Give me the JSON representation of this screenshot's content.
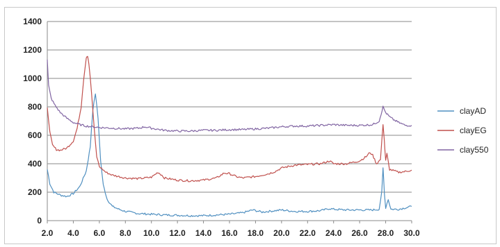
{
  "chart_data": {
    "type": "line",
    "title": "",
    "xlabel": "",
    "ylabel": "",
    "xlim": [
      2.0,
      30.0
    ],
    "ylim": [
      0,
      1400
    ],
    "x_ticks": [
      "2.0",
      "4.0",
      "6.0",
      "8.0",
      "10.0",
      "12.0",
      "14.0",
      "16.0",
      "18.0",
      "20.0",
      "22.0",
      "24.0",
      "26.0",
      "28.0",
      "30.0"
    ],
    "y_ticks": [
      "0",
      "200",
      "400",
      "600",
      "800",
      "1000",
      "1200",
      "1400"
    ],
    "grid": "horizontal",
    "legend_position": "right",
    "series": [
      {
        "name": "clayAD",
        "color": "#4f8fc0",
        "points": [
          [
            2.0,
            360
          ],
          [
            2.2,
            260
          ],
          [
            2.5,
            200
          ],
          [
            3.0,
            180
          ],
          [
            3.5,
            170
          ],
          [
            4.0,
            190
          ],
          [
            4.5,
            240
          ],
          [
            5.0,
            350
          ],
          [
            5.3,
            520
          ],
          [
            5.5,
            780
          ],
          [
            5.7,
            895
          ],
          [
            5.9,
            720
          ],
          [
            6.1,
            420
          ],
          [
            6.3,
            250
          ],
          [
            6.6,
            150
          ],
          [
            7.0,
            100
          ],
          [
            7.5,
            80
          ],
          [
            8.0,
            65
          ],
          [
            9.0,
            50
          ],
          [
            10.0,
            45
          ],
          [
            11.0,
            40
          ],
          [
            12.0,
            38
          ],
          [
            13.0,
            35
          ],
          [
            14.0,
            35
          ],
          [
            15.0,
            40
          ],
          [
            16.0,
            45
          ],
          [
            17.0,
            55
          ],
          [
            17.8,
            75
          ],
          [
            18.5,
            60
          ],
          [
            19.5,
            70
          ],
          [
            20.0,
            75
          ],
          [
            21.0,
            65
          ],
          [
            22.0,
            65
          ],
          [
            23.0,
            70
          ],
          [
            23.7,
            85
          ],
          [
            24.0,
            80
          ],
          [
            25.0,
            75
          ],
          [
            26.0,
            75
          ],
          [
            27.0,
            75
          ],
          [
            27.5,
            80
          ],
          [
            27.7,
            200
          ],
          [
            27.8,
            370
          ],
          [
            27.9,
            200
          ],
          [
            28.0,
            90
          ],
          [
            28.2,
            150
          ],
          [
            28.4,
            80
          ],
          [
            29.0,
            80
          ],
          [
            29.5,
            90
          ],
          [
            30.0,
            100
          ]
        ]
      },
      {
        "name": "clayEG",
        "color": "#c0504d",
        "points": [
          [
            2.0,
            800
          ],
          [
            2.2,
            620
          ],
          [
            2.4,
            530
          ],
          [
            2.7,
            500
          ],
          [
            3.0,
            495
          ],
          [
            3.5,
            510
          ],
          [
            4.0,
            560
          ],
          [
            4.3,
            650
          ],
          [
            4.6,
            800
          ],
          [
            4.8,
            1000
          ],
          [
            5.0,
            1150
          ],
          [
            5.1,
            1160
          ],
          [
            5.2,
            1100
          ],
          [
            5.4,
            900
          ],
          [
            5.6,
            650
          ],
          [
            5.8,
            450
          ],
          [
            6.0,
            380
          ],
          [
            6.5,
            340
          ],
          [
            7.0,
            320
          ],
          [
            8.0,
            300
          ],
          [
            9.0,
            295
          ],
          [
            10.0,
            305
          ],
          [
            10.5,
            340
          ],
          [
            10.8,
            320
          ],
          [
            11.0,
            300
          ],
          [
            12.0,
            285
          ],
          [
            13.0,
            280
          ],
          [
            14.0,
            285
          ],
          [
            15.0,
            300
          ],
          [
            15.6,
            335
          ],
          [
            16.0,
            330
          ],
          [
            16.5,
            310
          ],
          [
            17.0,
            300
          ],
          [
            18.0,
            310
          ],
          [
            19.0,
            330
          ],
          [
            19.5,
            345
          ],
          [
            20.0,
            370
          ],
          [
            20.5,
            380
          ],
          [
            21.0,
            390
          ],
          [
            22.0,
            395
          ],
          [
            23.0,
            400
          ],
          [
            23.7,
            420
          ],
          [
            24.0,
            400
          ],
          [
            25.0,
            400
          ],
          [
            25.5,
            410
          ],
          [
            26.0,
            420
          ],
          [
            26.5,
            450
          ],
          [
            26.8,
            480
          ],
          [
            27.0,
            460
          ],
          [
            27.3,
            400
          ],
          [
            27.6,
            430
          ],
          [
            27.8,
            680
          ],
          [
            27.9,
            560
          ],
          [
            28.0,
            420
          ],
          [
            28.1,
            470
          ],
          [
            28.3,
            360
          ],
          [
            29.0,
            340
          ],
          [
            29.5,
            345
          ],
          [
            30.0,
            355
          ]
        ]
      },
      {
        "name": "clay550",
        "color": "#8064a2",
        "points": [
          [
            2.0,
            1130
          ],
          [
            2.1,
            950
          ],
          [
            2.3,
            860
          ],
          [
            2.6,
            810
          ],
          [
            3.0,
            760
          ],
          [
            3.5,
            720
          ],
          [
            4.0,
            690
          ],
          [
            4.5,
            675
          ],
          [
            5.0,
            665
          ],
          [
            6.0,
            655
          ],
          [
            7.0,
            650
          ],
          [
            8.0,
            645
          ],
          [
            9.0,
            650
          ],
          [
            9.5,
            660
          ],
          [
            10.0,
            650
          ],
          [
            11.0,
            635
          ],
          [
            12.0,
            630
          ],
          [
            13.0,
            630
          ],
          [
            14.0,
            635
          ],
          [
            15.0,
            635
          ],
          [
            16.0,
            640
          ],
          [
            17.0,
            640
          ],
          [
            18.0,
            645
          ],
          [
            19.0,
            650
          ],
          [
            20.0,
            660
          ],
          [
            21.0,
            665
          ],
          [
            22.0,
            665
          ],
          [
            23.0,
            670
          ],
          [
            24.0,
            675
          ],
          [
            25.0,
            670
          ],
          [
            26.0,
            670
          ],
          [
            27.0,
            675
          ],
          [
            27.5,
            700
          ],
          [
            27.8,
            800
          ],
          [
            28.0,
            760
          ],
          [
            28.3,
            730
          ],
          [
            28.6,
            710
          ],
          [
            29.0,
            690
          ],
          [
            29.5,
            670
          ],
          [
            30.0,
            670
          ]
        ]
      }
    ]
  }
}
